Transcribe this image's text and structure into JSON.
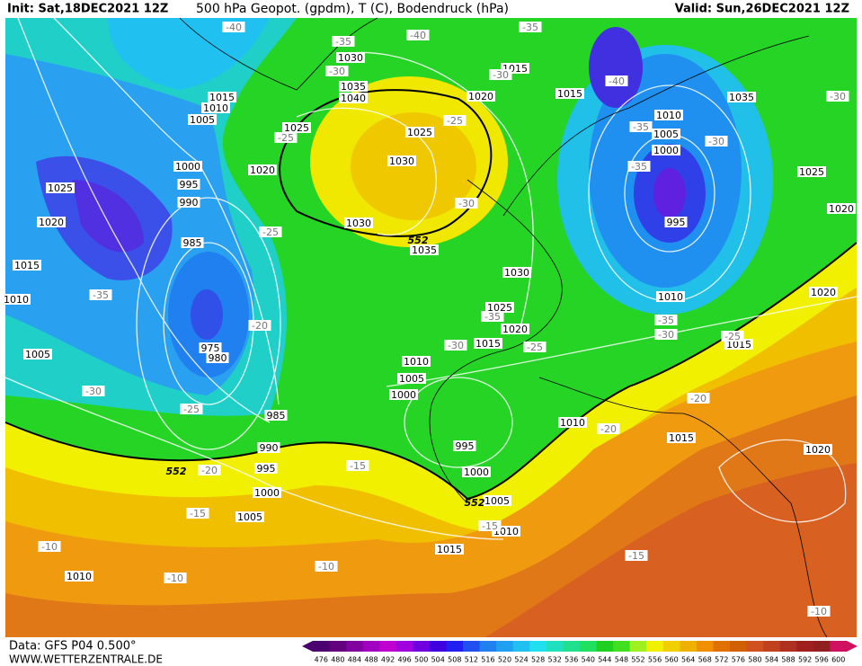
{
  "header": {
    "init": "Init: Sat,18DEC2021 12Z",
    "title": "500 hPa Geopot. (gpdm), T (C), Bodendruck (hPa)",
    "valid": "Valid: Sun,26DEC2021 12Z"
  },
  "footer": {
    "data": "Data: GFS P04 0.500°",
    "site": "WWW.WETTERZENTRALE.DE"
  },
  "pressure_labels": [
    "1030",
    "1035",
    "1040",
    "1015",
    "1010",
    "1005",
    "1025",
    "1020",
    "1000",
    "995",
    "990",
    "985",
    "975",
    "980",
    "1025",
    "1020",
    "1015",
    "1010",
    "1005",
    "1030",
    "1035",
    "1030",
    "1025",
    "1020",
    "1015",
    "1015",
    "1010",
    "1005",
    "1000",
    "995",
    "1010",
    "1035",
    "1025",
    "1020",
    "1020",
    "1015",
    "1030",
    "1025",
    "1020",
    "1015",
    "1010",
    "1005",
    "1000",
    "985",
    "990",
    "995",
    "1000",
    "1005",
    "1005",
    "1010",
    "1015",
    "1010",
    "995",
    "1000",
    "1010",
    "1015",
    "1020"
  ],
  "temperature_labels": [
    "-40",
    "-35",
    "-30",
    "-40",
    "-35",
    "-30",
    "-40",
    "-35",
    "-30",
    "-35",
    "-30",
    "-25",
    "-25",
    "-30",
    "-25",
    "-35",
    "-35",
    "-30",
    "-25",
    "-20",
    "-30",
    "-25",
    "-35",
    "-30",
    "-25",
    "-20",
    "-20",
    "-20",
    "-15",
    "-15",
    "-10",
    "-10",
    "-10",
    "-15",
    "-15",
    "-10"
  ],
  "geopotential_labels": [
    "552",
    "552",
    "552"
  ],
  "legend": {
    "values": [
      476,
      480,
      484,
      488,
      492,
      496,
      500,
      504,
      508,
      512,
      516,
      520,
      524,
      528,
      532,
      536,
      540,
      544,
      548,
      552,
      556,
      560,
      564,
      568,
      572,
      576,
      580,
      584,
      588,
      592,
      596,
      600
    ],
    "colors": [
      "#4b0070",
      "#620080",
      "#8000a0",
      "#a000c0",
      "#c000d0",
      "#a000e0",
      "#7000e0",
      "#4000e0",
      "#2020f0",
      "#2050f0",
      "#2080f0",
      "#20a0f0",
      "#20c0f0",
      "#20e0f0",
      "#20e0c0",
      "#20e090",
      "#20e060",
      "#20d020",
      "#40e020",
      "#a0f020",
      "#f0f000",
      "#f0d000",
      "#f0b000",
      "#f09000",
      "#e07000",
      "#d06000",
      "#d05020",
      "#c04020",
      "#b03020",
      "#a02020",
      "#902020",
      "#d01060"
    ]
  }
}
